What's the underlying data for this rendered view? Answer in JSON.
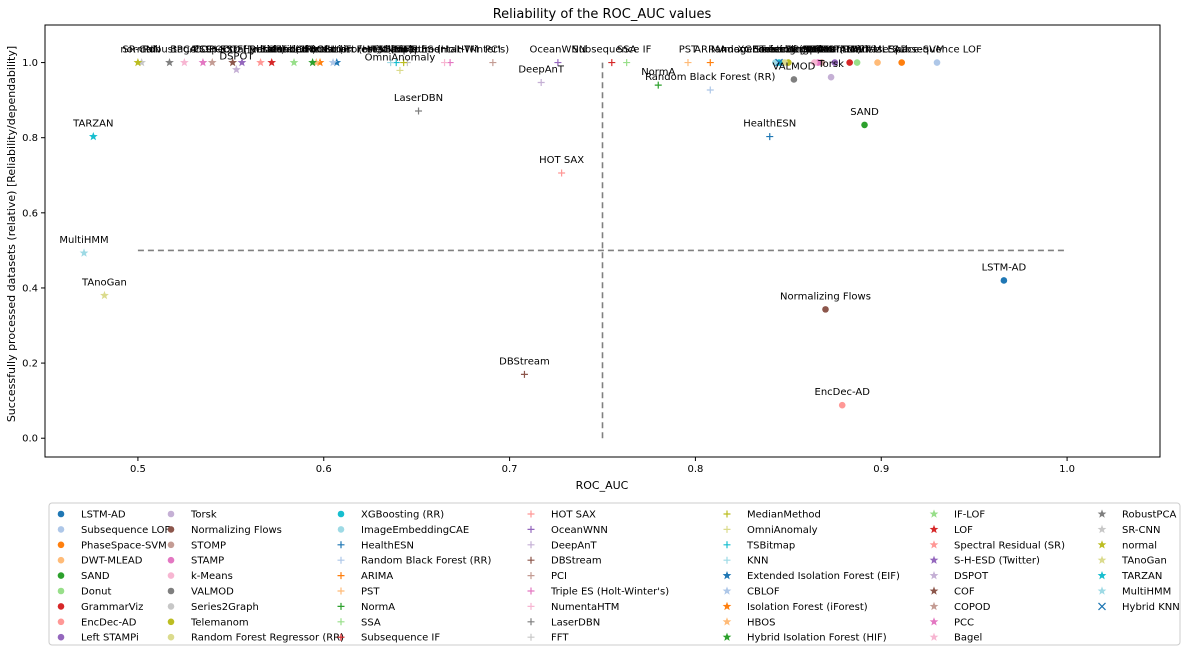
{
  "chart_data": {
    "type": "scatter",
    "title": "Reliability of the ROC_AUC values",
    "xlabel": "ROC_AUC",
    "ylabel": "Successfully processed datasets (relative) [Reliability/dependability]",
    "xlim": [
      0.45,
      1.05
    ],
    "ylim": [
      -0.05,
      1.1
    ],
    "xticks": [
      "0.5",
      "0.6",
      "0.7",
      "0.8",
      "0.9",
      "1.0"
    ],
    "yticks": [
      "0.0",
      "0.2",
      "0.4",
      "0.6",
      "0.8",
      "1.0"
    ],
    "reference_lines": {
      "x": 0.75,
      "y": 0.5
    },
    "legend_placement": "bottom",
    "series": [
      {
        "name": "LSTM-AD",
        "marker": "o",
        "color": "#1f77b4",
        "x": 0.966,
        "y": 0.42,
        "label": "LSTM-AD"
      },
      {
        "name": "Subsequence LOF",
        "marker": "o",
        "color": "#aec7e8",
        "x": 0.93,
        "y": 1.0,
        "label": "Subsequence LOF"
      },
      {
        "name": "PhaseSpace-SVM",
        "marker": "o",
        "color": "#ff7f0e",
        "x": 0.911,
        "y": 1.0,
        "label": "PhaseSpace-SVM"
      },
      {
        "name": "DWT-MLEAD",
        "marker": "o",
        "color": "#ffbb78",
        "x": 0.898,
        "y": 1.0,
        "label": "DWT-MLEAD"
      },
      {
        "name": "SAND",
        "marker": "o",
        "color": "#2ca02c",
        "x": 0.891,
        "y": 0.834,
        "label": "SAND"
      },
      {
        "name": "Donut",
        "marker": "o",
        "color": "#98df8a",
        "x": 0.887,
        "y": 1.0,
        "label": "Donut"
      },
      {
        "name": "GrammarViz",
        "marker": "o",
        "color": "#d62728",
        "x": 0.883,
        "y": 1.0,
        "label": "GrammarViz"
      },
      {
        "name": "EncDec-AD",
        "marker": "o",
        "color": "#ff9896",
        "x": 0.879,
        "y": 0.088,
        "label": "EncDec-AD"
      },
      {
        "name": "Left STAMPi",
        "marker": "o",
        "color": "#9467bd",
        "x": 0.875,
        "y": 1.0,
        "label": "Left STAMPi"
      },
      {
        "name": "Torsk",
        "marker": "o",
        "color": "#c5b0d5",
        "x": 0.873,
        "y": 0.961,
        "label": "Torsk"
      },
      {
        "name": "Normalizing Flows",
        "marker": "o",
        "color": "#8c564b",
        "x": 0.87,
        "y": 0.343,
        "label": "Normalizing Flows"
      },
      {
        "name": "STOMP",
        "marker": "o",
        "color": "#c49c94",
        "x": 0.868,
        "y": 1.0,
        "label": "STOMP"
      },
      {
        "name": "STAMP",
        "marker": "o",
        "color": "#e377c2",
        "x": 0.866,
        "y": 1.0,
        "label": "STAMP"
      },
      {
        "name": "k-Means",
        "marker": "o",
        "color": "#f7b6d2",
        "x": 0.864,
        "y": 1.0,
        "label": "k-Means"
      },
      {
        "name": "VALMOD",
        "marker": "o",
        "color": "#7f7f7f",
        "x": 0.853,
        "y": 0.955,
        "label": "VALMOD"
      },
      {
        "name": "Series2Graph",
        "marker": "o",
        "color": "#c7c7c7",
        "x": 0.85,
        "y": 1.0,
        "label": "Series2Graph"
      },
      {
        "name": "Telemanom",
        "marker": "o",
        "color": "#bcbd22",
        "x": 0.85,
        "y": 1.0,
        "label": "Telemanom"
      },
      {
        "name": "Random Forest Regressor (RR)",
        "marker": "o",
        "color": "#dbdb8d",
        "x": 0.848,
        "y": 1.0,
        "label": "Random Forest Regressor (RR)"
      },
      {
        "name": "XGBoosting (RR)",
        "marker": "o",
        "color": "#17becf",
        "x": 0.845,
        "y": 1.0,
        "label": "XGBoosting (RR)"
      },
      {
        "name": "ImageEmbeddingCAE",
        "marker": "o",
        "color": "#9edae5",
        "x": 0.843,
        "y": 1.0,
        "label": "ImageEmbeddingCAE"
      },
      {
        "name": "HealthESN",
        "marker": "+",
        "color": "#1f77b4",
        "x": 0.84,
        "y": 0.803,
        "label": "HealthESN"
      },
      {
        "name": "Random Black Forest (RR)",
        "marker": "+",
        "color": "#aec7e8",
        "x": 0.808,
        "y": 0.927,
        "label": "Random Black Forest (RR)"
      },
      {
        "name": "ARIMA",
        "marker": "+",
        "color": "#ff7f0e",
        "x": 0.808,
        "y": 1.0,
        "label": "ARIMA"
      },
      {
        "name": "PST",
        "marker": "+",
        "color": "#ffbb78",
        "x": 0.796,
        "y": 1.0,
        "label": "PST"
      },
      {
        "name": "NormA",
        "marker": "+",
        "color": "#2ca02c",
        "x": 0.78,
        "y": 0.94,
        "label": "NormA"
      },
      {
        "name": "SSA",
        "marker": "+",
        "color": "#98df8a",
        "x": 0.763,
        "y": 1.0,
        "label": "SSA"
      },
      {
        "name": "Subsequence IF",
        "marker": "+",
        "color": "#d62728",
        "x": 0.755,
        "y": 1.0,
        "label": "Subsequence IF"
      },
      {
        "name": "HOT SAX",
        "marker": "+",
        "color": "#ff9896",
        "x": 0.728,
        "y": 0.706,
        "label": "HOT SAX"
      },
      {
        "name": "OceanWNN",
        "marker": "+",
        "color": "#9467bd",
        "x": 0.726,
        "y": 1.0,
        "label": "OceanWNN"
      },
      {
        "name": "DeepAnT",
        "marker": "+",
        "color": "#c5b0d5",
        "x": 0.717,
        "y": 0.947,
        "label": "DeepAnT"
      },
      {
        "name": "DBStream",
        "marker": "+",
        "color": "#8c564b",
        "x": 0.708,
        "y": 0.17,
        "label": "DBStream"
      },
      {
        "name": "PCI",
        "marker": "+",
        "color": "#c49c94",
        "x": 0.691,
        "y": 1.0,
        "label": "PCI"
      },
      {
        "name": "Triple ES (Holt-Winter's)",
        "marker": "+",
        "color": "#e377c2",
        "x": 0.668,
        "y": 1.0,
        "label": "Triple ES (Holt-Winter's)"
      },
      {
        "name": "NumentaHTM",
        "marker": "+",
        "color": "#f7b6d2",
        "x": 0.665,
        "y": 1.0,
        "label": "NumentaHTM"
      },
      {
        "name": "LaserDBN",
        "marker": "+",
        "color": "#7f7f7f",
        "x": 0.651,
        "y": 0.871,
        "label": "LaserDBN"
      },
      {
        "name": "FFT",
        "marker": "+",
        "color": "#c7c7c7",
        "x": 0.645,
        "y": 1.0,
        "label": "FFT"
      },
      {
        "name": "MedianMethod",
        "marker": "+",
        "color": "#bcbd22",
        "x": 0.643,
        "y": 1.0,
        "label": "MedianMethod"
      },
      {
        "name": "OmniAnomaly",
        "marker": "+",
        "color": "#dbdb8d",
        "x": 0.641,
        "y": 0.979,
        "label": "OmniAnomaly"
      },
      {
        "name": "TSBitmap",
        "marker": "+",
        "color": "#17becf",
        "x": 0.639,
        "y": 1.0,
        "label": "TSBitmap"
      },
      {
        "name": "KNN",
        "marker": "+",
        "color": "#9edae5",
        "x": 0.636,
        "y": 1.0,
        "label": "KNN"
      },
      {
        "name": "Extended Isolation Forest (EIF)",
        "marker": "*",
        "color": "#1f77b4",
        "x": 0.607,
        "y": 1.0,
        "label": "Extended Isolation Forest (EIF)"
      },
      {
        "name": "CBLOF",
        "marker": "*",
        "color": "#aec7e8",
        "x": 0.605,
        "y": 1.0,
        "label": "CBLOF"
      },
      {
        "name": "Isolation Forest (iForest)",
        "marker": "*",
        "color": "#ff7f0e",
        "x": 0.598,
        "y": 1.0,
        "label": "Isolation Forest (iForest)"
      },
      {
        "name": "HBOS",
        "marker": "*",
        "color": "#ffbb78",
        "x": 0.596,
        "y": 1.0,
        "label": "HBOS"
      },
      {
        "name": "Hybrid Isolation Forest (HIF)",
        "marker": "*",
        "color": "#2ca02c",
        "x": 0.594,
        "y": 1.0,
        "label": "Hybrid Isolation Forest (HIF)"
      },
      {
        "name": "IF-LOF",
        "marker": "*",
        "color": "#98df8a",
        "x": 0.584,
        "y": 1.0,
        "label": "IF-LOF"
      },
      {
        "name": "LOF",
        "marker": "*",
        "color": "#d62728",
        "x": 0.572,
        "y": 1.0,
        "label": "LOF"
      },
      {
        "name": "Spectral Residual (SR)",
        "marker": "*",
        "color": "#ff9896",
        "x": 0.566,
        "y": 1.0,
        "label": "Spectral Residual (SR)"
      },
      {
        "name": "S-H-ESD (Twitter)",
        "marker": "*",
        "color": "#9467bd",
        "x": 0.556,
        "y": 1.0,
        "label": "S-H-ESD (Twitter)"
      },
      {
        "name": "DSPOT",
        "marker": "*",
        "color": "#c5b0d5",
        "x": 0.553,
        "y": 0.981,
        "label": "DSPOT"
      },
      {
        "name": "COF",
        "marker": "*",
        "color": "#8c564b",
        "x": 0.551,
        "y": 1.0,
        "label": "COF"
      },
      {
        "name": "COPOD",
        "marker": "*",
        "color": "#c49c94",
        "x": 0.54,
        "y": 1.0,
        "label": "COPOD"
      },
      {
        "name": "PCC",
        "marker": "*",
        "color": "#e377c2",
        "x": 0.535,
        "y": 1.0,
        "label": "PCC"
      },
      {
        "name": "Bagel",
        "marker": "*",
        "color": "#f7b6d2",
        "x": 0.525,
        "y": 1.0,
        "label": "Bagel"
      },
      {
        "name": "RobustPCA",
        "marker": "*",
        "color": "#7f7f7f",
        "x": 0.517,
        "y": 1.0,
        "label": "RobustPCA"
      },
      {
        "name": "SR-CNN",
        "marker": "*",
        "color": "#c7c7c7",
        "x": 0.502,
        "y": 1.0,
        "label": "SR-CNN"
      },
      {
        "name": "normal",
        "marker": "*",
        "color": "#bcbd22",
        "x": 0.5,
        "y": 1.0,
        "label": "normal"
      },
      {
        "name": "TAnoGan",
        "marker": "*",
        "color": "#dbdb8d",
        "x": 0.482,
        "y": 0.38,
        "label": "TAnoGan"
      },
      {
        "name": "TARZAN",
        "marker": "*",
        "color": "#17becf",
        "x": 0.476,
        "y": 0.803,
        "label": "TARZAN"
      },
      {
        "name": "MultiHMM",
        "marker": "*",
        "color": "#9edae5",
        "x": 0.471,
        "y": 0.493,
        "label": "MultiHMM"
      },
      {
        "name": "Hybrid KNN",
        "marker": "x",
        "color": "#1f77b4",
        "x": 0.845,
        "y": 1.0,
        "label": ""
      }
    ]
  }
}
